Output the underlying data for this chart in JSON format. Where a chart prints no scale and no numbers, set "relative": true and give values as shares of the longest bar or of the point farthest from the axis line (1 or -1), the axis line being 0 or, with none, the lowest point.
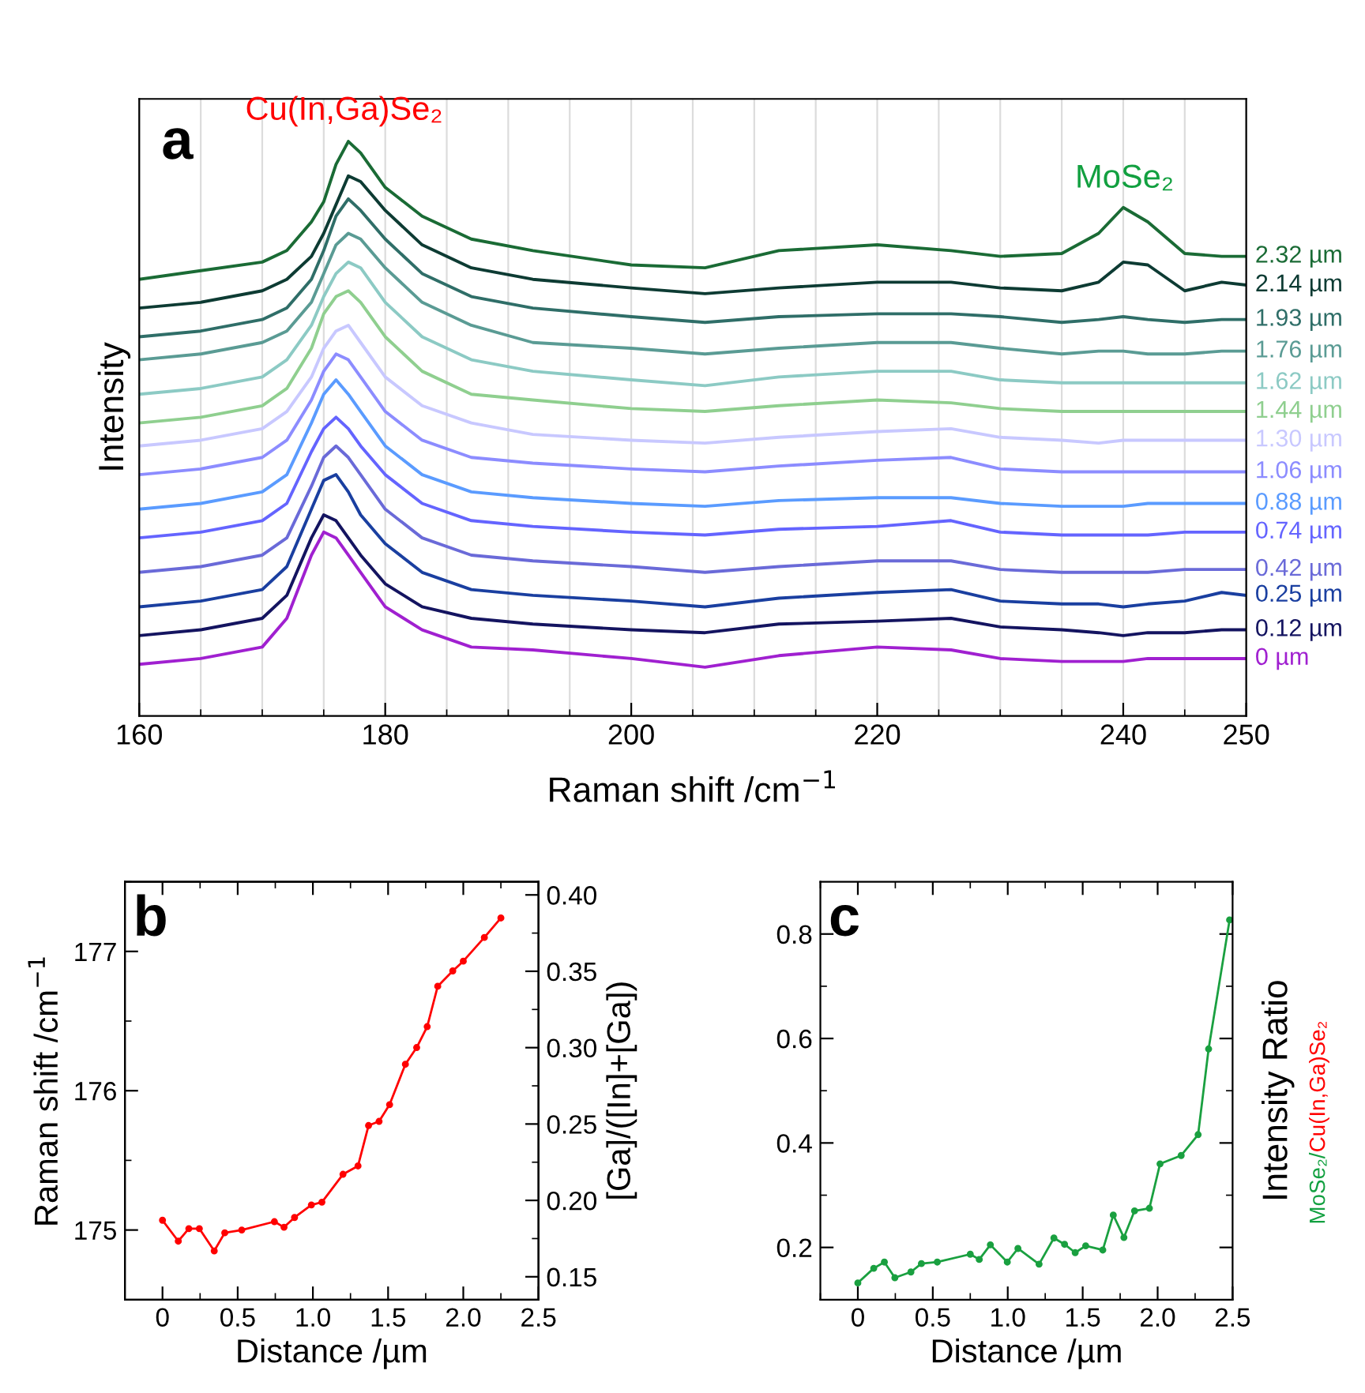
{
  "chart_data": [
    {
      "type": "line",
      "relative": true,
      "xlabel": "Raman shift /cm$^{−1}$",
      "ylabel": "Intensity",
      "xlim": [
        160,
        250
      ],
      "xticks": [
        160,
        {
          "value": 165,
          "label": null
        },
        {
          "value": 170,
          "label": null
        },
        {
          "value": 175,
          "label": null
        },
        180,
        {
          "value": 185,
          "label": null
        },
        {
          "value": 190,
          "label": null
        },
        {
          "value": 195,
          "label": null
        },
        200,
        {
          "value": 205,
          "label": null
        },
        {
          "value": 210,
          "label": null
        },
        {
          "value": 215,
          "label": null
        },
        220,
        {
          "value": 225,
          "label": null
        },
        {
          "value": 230,
          "label": null
        },
        {
          "value": 235,
          "label": null
        },
        240,
        {
          "value": 245,
          "label": null
        },
        250
      ],
      "grid": "x",
      "annotations": [
        "a",
        "Cu(In,Ga)Se₂",
        "MoSe₂"
      ],
      "x": [
        160,
        165,
        170,
        172,
        174,
        175,
        176,
        177,
        178,
        180,
        183,
        187,
        192,
        200,
        206,
        212,
        220,
        226,
        230,
        235,
        238,
        240,
        242,
        245,
        248,
        250
      ],
      "series": [
        {
          "name": "0 µm",
          "color": "#a020d0",
          "values": [
            0.09,
            0.1,
            0.12,
            0.17,
            0.28,
            0.32,
            0.31,
            0.28,
            0.25,
            0.19,
            0.15,
            0.12,
            0.115,
            0.1,
            0.085,
            0.105,
            0.12,
            0.115,
            0.1,
            0.095,
            0.095,
            0.095,
            0.1,
            0.1,
            0.1,
            0.1
          ]
        },
        {
          "name": "0.12 µm",
          "color": "#141460",
          "values": [
            0.14,
            0.15,
            0.17,
            0.21,
            0.31,
            0.35,
            0.34,
            0.31,
            0.28,
            0.23,
            0.19,
            0.17,
            0.16,
            0.15,
            0.145,
            0.16,
            0.165,
            0.17,
            0.155,
            0.15,
            0.145,
            0.14,
            0.145,
            0.145,
            0.15,
            0.15
          ]
        },
        {
          "name": "0.25 µm",
          "color": "#1a3fa0",
          "values": [
            0.19,
            0.2,
            0.22,
            0.26,
            0.36,
            0.41,
            0.42,
            0.39,
            0.35,
            0.3,
            0.25,
            0.22,
            0.21,
            0.2,
            0.19,
            0.205,
            0.215,
            0.22,
            0.2,
            0.195,
            0.195,
            0.19,
            0.195,
            0.2,
            0.215,
            0.21
          ]
        },
        {
          "name": "0.42 µm",
          "color": "#6a6ad8",
          "values": [
            0.25,
            0.26,
            0.28,
            0.31,
            0.4,
            0.45,
            0.47,
            0.45,
            0.42,
            0.36,
            0.31,
            0.28,
            0.27,
            0.26,
            0.25,
            0.26,
            0.27,
            0.27,
            0.255,
            0.25,
            0.25,
            0.25,
            0.25,
            0.255,
            0.255,
            0.255
          ]
        },
        {
          "name": "0.74 µm",
          "color": "#6464ff",
          "values": [
            0.31,
            0.32,
            0.34,
            0.37,
            0.46,
            0.5,
            0.52,
            0.5,
            0.47,
            0.42,
            0.37,
            0.34,
            0.33,
            0.32,
            0.315,
            0.325,
            0.33,
            0.34,
            0.32,
            0.315,
            0.315,
            0.315,
            0.315,
            0.32,
            0.32,
            0.32
          ]
        },
        {
          "name": "0.88 µm",
          "color": "#5a9bff",
          "values": [
            0.36,
            0.37,
            0.39,
            0.42,
            0.51,
            0.56,
            0.585,
            0.56,
            0.53,
            0.47,
            0.42,
            0.39,
            0.38,
            0.37,
            0.365,
            0.375,
            0.38,
            0.38,
            0.37,
            0.365,
            0.365,
            0.365,
            0.37,
            0.37,
            0.37,
            0.37
          ]
        },
        {
          "name": "1.06 µm",
          "color": "#8c8cff",
          "values": [
            0.42,
            0.43,
            0.45,
            0.48,
            0.55,
            0.6,
            0.63,
            0.62,
            0.59,
            0.53,
            0.48,
            0.45,
            0.44,
            0.43,
            0.425,
            0.435,
            0.445,
            0.45,
            0.43,
            0.425,
            0.425,
            0.425,
            0.425,
            0.425,
            0.425,
            0.425
          ]
        },
        {
          "name": "1.30 µm",
          "color": "#c8c8ff",
          "values": [
            0.47,
            0.48,
            0.5,
            0.53,
            0.59,
            0.64,
            0.67,
            0.68,
            0.65,
            0.59,
            0.54,
            0.51,
            0.49,
            0.48,
            0.475,
            0.485,
            0.495,
            0.5,
            0.485,
            0.48,
            0.475,
            0.48,
            0.48,
            0.48,
            0.48,
            0.48
          ]
        },
        {
          "name": "1.44 µm",
          "color": "#8fcf8f",
          "values": [
            0.51,
            0.52,
            0.54,
            0.57,
            0.64,
            0.7,
            0.73,
            0.74,
            0.72,
            0.66,
            0.6,
            0.56,
            0.55,
            0.535,
            0.53,
            0.54,
            0.55,
            0.545,
            0.535,
            0.53,
            0.53,
            0.53,
            0.53,
            0.53,
            0.53,
            0.53
          ]
        },
        {
          "name": "1.62 µm",
          "color": "#8ccac4",
          "values": [
            0.56,
            0.57,
            0.59,
            0.62,
            0.68,
            0.73,
            0.77,
            0.79,
            0.78,
            0.72,
            0.66,
            0.62,
            0.6,
            0.585,
            0.575,
            0.59,
            0.6,
            0.6,
            0.585,
            0.58,
            0.58,
            0.58,
            0.58,
            0.58,
            0.58,
            0.58
          ]
        },
        {
          "name": "1.76 µm",
          "color": "#5a9b94",
          "values": [
            0.62,
            0.63,
            0.65,
            0.67,
            0.72,
            0.77,
            0.82,
            0.84,
            0.83,
            0.78,
            0.72,
            0.68,
            0.65,
            0.64,
            0.63,
            0.64,
            0.65,
            0.65,
            0.64,
            0.63,
            0.635,
            0.635,
            0.63,
            0.63,
            0.635,
            0.635
          ]
        },
        {
          "name": "1.93 µm",
          "color": "#2f6e68",
          "values": [
            0.66,
            0.67,
            0.69,
            0.71,
            0.76,
            0.81,
            0.87,
            0.9,
            0.88,
            0.83,
            0.77,
            0.73,
            0.71,
            0.695,
            0.685,
            0.695,
            0.7,
            0.7,
            0.695,
            0.685,
            0.69,
            0.695,
            0.69,
            0.685,
            0.69,
            0.69
          ]
        },
        {
          "name": "2.14 µm",
          "color": "#0d3b33",
          "values": [
            0.71,
            0.72,
            0.74,
            0.76,
            0.8,
            0.84,
            0.89,
            0.94,
            0.93,
            0.88,
            0.82,
            0.78,
            0.76,
            0.745,
            0.735,
            0.745,
            0.755,
            0.755,
            0.745,
            0.74,
            0.755,
            0.79,
            0.785,
            0.74,
            0.755,
            0.75
          ]
        },
        {
          "name": "2.32 µm",
          "color": "#1a6b35",
          "values": [
            0.76,
            0.775,
            0.79,
            0.81,
            0.86,
            0.895,
            0.96,
            1.0,
            0.98,
            0.92,
            0.87,
            0.83,
            0.81,
            0.785,
            0.78,
            0.81,
            0.82,
            0.81,
            0.8,
            0.805,
            0.84,
            0.885,
            0.86,
            0.805,
            0.8,
            0.8
          ]
        }
      ]
    },
    {
      "type": "line",
      "xlabel": "Distance /µm",
      "ylabel": "Raman shift /cm$^{−1}$",
      "y2label": "[Ga]/([In]+[Ga])",
      "marker": "circle",
      "xlim": [
        -0.25,
        2.5
      ],
      "ylim": [
        174.5,
        177.5
      ],
      "y2lim": [
        0.135,
        0.4086
      ],
      "xticks": [
        0,
        0.5,
        {
          "value": 1,
          "label": "1.0"
        },
        1.5,
        {
          "value": 2,
          "label": "2.0"
        },
        2.5,
        {
          "value": -0.25,
          "label": null
        },
        {
          "value": 0.25,
          "label": null
        },
        {
          "value": 0.75,
          "label": null
        },
        {
          "value": 1.25,
          "label": null
        },
        {
          "value": 1.75,
          "label": null
        },
        {
          "value": 2.25,
          "label": null
        }
      ],
      "yticks": [
        175,
        176,
        177,
        {
          "value": 174.5,
          "label": null
        },
        {
          "value": 175.5,
          "label": null
        },
        {
          "value": 176.5,
          "label": null
        },
        {
          "value": 177.5,
          "label": null
        }
      ],
      "y2ticks": [
        {
          "value": 0.15,
          "label": "0.15"
        },
        {
          "value": 0.2,
          "label": "0.20"
        },
        {
          "value": 0.25,
          "label": "0.25"
        },
        {
          "value": 0.3,
          "label": "0.30"
        },
        {
          "value": 0.35,
          "label": "0.35"
        },
        {
          "value": 0.4,
          "label": "0.40"
        },
        {
          "value": 0.175,
          "label": null
        },
        {
          "value": 0.225,
          "label": null
        },
        {
          "value": 0.275,
          "label": null
        },
        {
          "value": 0.325,
          "label": null
        },
        {
          "value": 0.375,
          "label": null
        }
      ],
      "annotations": [
        "b"
      ],
      "x": [
        0,
        0.105,
        0.175,
        0.245,
        0.344,
        0.414,
        0.527,
        0.744,
        0.808,
        0.878,
        0.99,
        1.06,
        1.2,
        1.3,
        1.37,
        1.44,
        1.51,
        1.615,
        1.69,
        1.76,
        1.83,
        1.93,
        2.0,
        2.14,
        2.25
      ],
      "series": [
        {
          "color": "#ff0000",
          "values": [
            175.07,
            174.92,
            175.01,
            175.01,
            174.85,
            174.98,
            175.0,
            175.06,
            175.02,
            175.09,
            175.18,
            175.2,
            175.4,
            175.46,
            175.75,
            175.78,
            175.9,
            176.19,
            176.31,
            176.46,
            176.75,
            176.86,
            176.93,
            177.1,
            177.24
          ]
        }
      ]
    },
    {
      "type": "line",
      "xlabel": "Distance /µm",
      "ylabel": "Intensity Ratio",
      "marker": "circle",
      "xlim": [
        -0.25,
        2.5
      ],
      "ylim": [
        0.1,
        0.9
      ],
      "xticks": [
        0,
        0.5,
        {
          "value": 1,
          "label": "1.0"
        },
        1.5,
        {
          "value": 2,
          "label": "2.0"
        },
        2.5,
        {
          "value": -0.25,
          "label": null
        },
        {
          "value": 0.25,
          "label": null
        },
        {
          "value": 0.75,
          "label": null
        },
        {
          "value": 1.25,
          "label": null
        },
        {
          "value": 1.75,
          "label": null
        },
        {
          "value": 2.25,
          "label": null
        }
      ],
      "yticks": [
        0.2,
        0.4,
        0.6,
        0.8,
        {
          "value": 0.3,
          "label": null
        },
        {
          "value": 0.5,
          "label": null
        },
        {
          "value": 0.7,
          "label": null
        }
      ],
      "annotations": [
        "c",
        "MoSe₂/Cu(In,Ga)Se₂"
      ],
      "x": [
        0,
        0.106,
        0.177,
        0.247,
        0.354,
        0.424,
        0.53,
        0.75,
        0.81,
        0.884,
        0.997,
        1.068,
        1.209,
        1.308,
        1.379,
        1.45,
        1.52,
        1.634,
        1.704,
        1.775,
        1.846,
        1.945,
        2.016,
        2.157,
        2.27,
        2.34,
        2.48
      ],
      "series": [
        {
          "color": "#1aa040",
          "values": [
            0.132,
            0.16,
            0.172,
            0.142,
            0.153,
            0.169,
            0.172,
            0.187,
            0.177,
            0.205,
            0.172,
            0.198,
            0.168,
            0.218,
            0.206,
            0.19,
            0.203,
            0.195,
            0.262,
            0.219,
            0.27,
            0.275,
            0.36,
            0.376,
            0.416,
            0.58,
            0.827
          ]
        }
      ]
    }
  ]
}
